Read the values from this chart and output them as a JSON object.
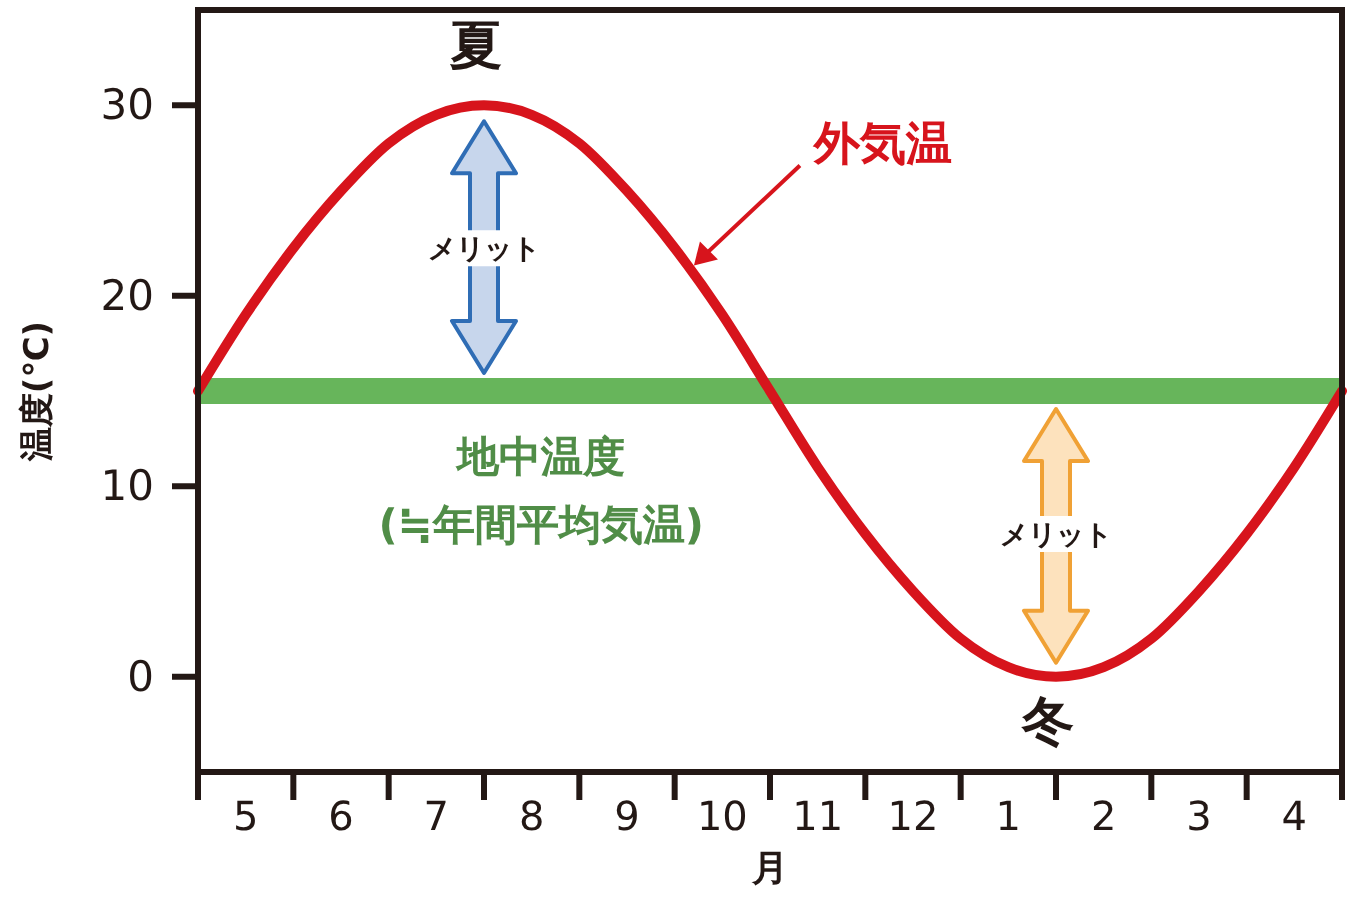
{
  "chart_data": {
    "type": "line",
    "xlabel": "月",
    "ylabel": "温度(℃)",
    "categories": [
      null,
      "5",
      null,
      "6",
      null,
      "7",
      null,
      "8",
      null,
      "9",
      null,
      "10",
      null,
      "11",
      null,
      "12",
      null,
      "1",
      null,
      "2",
      null,
      "3",
      null,
      "4",
      null
    ],
    "ylim": [
      -5,
      35
    ],
    "yticks": [
      0,
      10,
      20,
      30
    ],
    "series": [
      {
        "name": "外気温",
        "color": "#d7141c",
        "values": [
          15,
          19,
          22.5,
          25.5,
          28,
          29.5,
          30,
          29.5,
          28,
          25.5,
          22.5,
          19,
          15,
          11,
          7.5,
          4.5,
          2,
          0.5,
          0,
          0.5,
          2,
          4.5,
          7.5,
          11,
          15
        ]
      }
    ],
    "ref_lines": [
      {
        "axis": "y",
        "value": 15,
        "label": "地中温度\n(≒年間平均気温)",
        "color": "#67b55b"
      }
    ],
    "annotations": [
      {
        "text": "夏",
        "y": 30
      },
      "メリット",
      "メリット",
      {
        "text": "冬",
        "y": 0
      }
    ]
  }
}
